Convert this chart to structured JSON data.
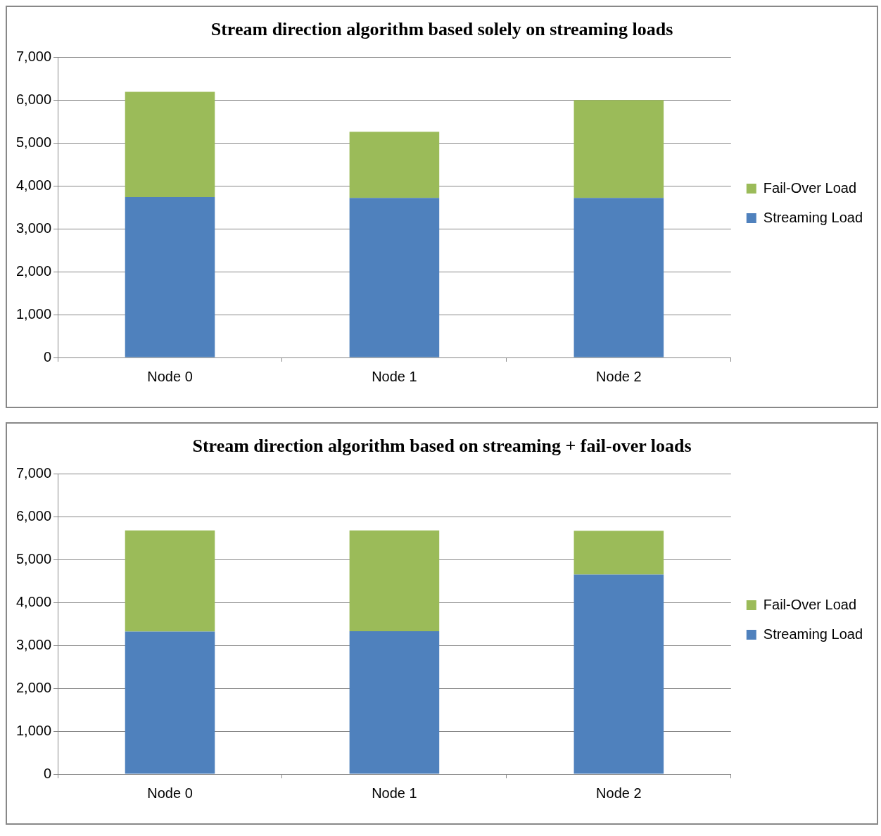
{
  "chart_data": [
    {
      "type": "bar",
      "title": "Stream direction algorithm based solely on streaming loads",
      "categories": [
        "Node 0",
        "Node 1",
        "Node 2"
      ],
      "stacked": true,
      "series": [
        {
          "name": "Streaming Load",
          "color": "#4f81bd",
          "values": [
            3740,
            3720,
            3720
          ]
        },
        {
          "name": "Fail-Over Load",
          "color": "#9bbb59",
          "values": [
            2450,
            1540,
            2280
          ]
        }
      ],
      "ylim": [
        0,
        7000
      ],
      "yticks": [
        0,
        {
          "value": 1000,
          "label": "1,000"
        },
        {
          "value": 2000,
          "label": "2,000"
        },
        {
          "value": 3000,
          "label": "3,000"
        },
        {
          "value": 4000,
          "label": "4,000"
        },
        {
          "value": 5000,
          "label": "5,000"
        },
        {
          "value": 6000,
          "label": "6,000"
        },
        {
          "value": 7000,
          "label": "7,000"
        }
      ],
      "grid": "y",
      "legend": "right"
    },
    {
      "type": "bar",
      "title": "Stream direction algorithm based on streaming + fail-over loads",
      "categories": [
        "Node 0",
        "Node 1",
        "Node 2"
      ],
      "stacked": true,
      "series": [
        {
          "name": "Streaming Load",
          "color": "#4f81bd",
          "values": [
            3320,
            3330,
            4650
          ]
        },
        {
          "name": "Fail-Over Load",
          "color": "#9bbb59",
          "values": [
            2360,
            2350,
            1020
          ]
        }
      ],
      "ylim": [
        0,
        7000
      ],
      "yticks": [
        0,
        {
          "value": 1000,
          "label": "1,000"
        },
        {
          "value": 2000,
          "label": "2,000"
        },
        {
          "value": 3000,
          "label": "3,000"
        },
        {
          "value": 4000,
          "label": "4,000"
        },
        {
          "value": 5000,
          "label": "5,000"
        },
        {
          "value": 6000,
          "label": "6,000"
        },
        {
          "value": 7000,
          "label": "7,000"
        }
      ],
      "grid": "y",
      "legend": "right"
    }
  ]
}
